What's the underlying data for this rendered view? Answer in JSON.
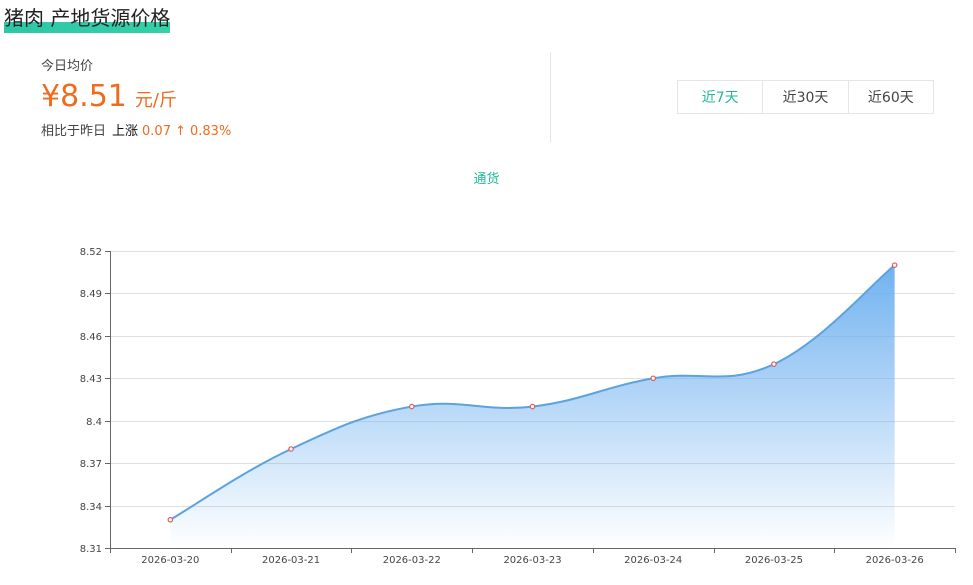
{
  "header": {
    "title": "猪肉 产地货源价格"
  },
  "summary": {
    "label": "今日均价",
    "price": "¥8.51",
    "unit": "元/斤",
    "compare_label": "相比于昨日",
    "direction": "上涨",
    "amount": "0.07",
    "percent": "↑ 0.83%"
  },
  "range_tabs": [
    {
      "label": "近7天",
      "active": true
    },
    {
      "label": "近30天",
      "active": false
    },
    {
      "label": "近60天",
      "active": false
    }
  ],
  "colors": {
    "accent": "#1fb89a",
    "price": "#ef6b1e",
    "line": "#5aa2e0",
    "area_top": "#7fb8f0",
    "point": "#e05a5a"
  },
  "chart_data": {
    "type": "area",
    "title": "",
    "xlabel": "",
    "ylabel": "",
    "legend": "top-center",
    "grid": true,
    "ylim": [
      8.31,
      8.52
    ],
    "yticks": [
      "8.52",
      "8.49",
      "8.46",
      "8.43",
      "8.4",
      "8.37",
      "8.34",
      "8.31"
    ],
    "categories": [
      "2026-03-20",
      "2026-03-21",
      "2026-03-22",
      "2026-03-23",
      "2026-03-24",
      "2026-03-25",
      "2026-03-26"
    ],
    "series": [
      {
        "name": "通货",
        "values": [
          8.33,
          8.38,
          8.41,
          8.41,
          8.43,
          8.44,
          8.51
        ]
      }
    ]
  }
}
